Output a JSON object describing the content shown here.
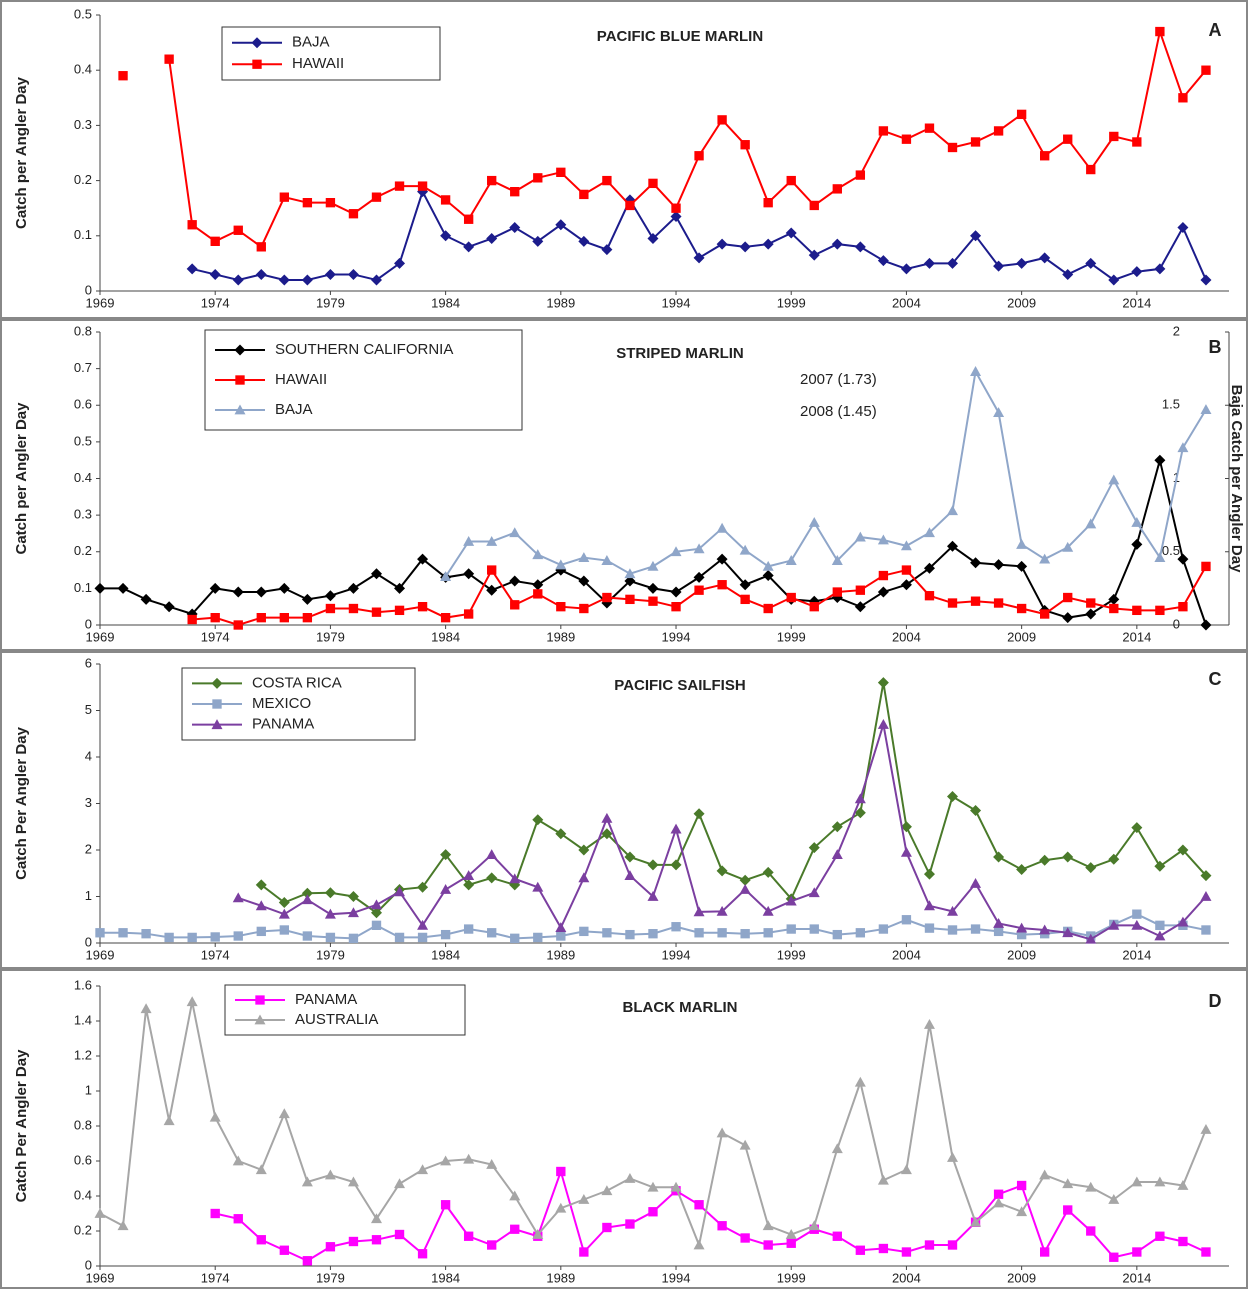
{
  "chart_data": [
    {
      "type": "line",
      "title": "PACIFIC BLUE MARLIN",
      "panel_label": "A",
      "ylabel": "Catch per Angler Day",
      "x": [
        1969,
        1970,
        1971,
        1972,
        1973,
        1974,
        1975,
        1976,
        1977,
        1978,
        1979,
        1980,
        1981,
        1982,
        1983,
        1984,
        1985,
        1986,
        1987,
        1988,
        1989,
        1990,
        1991,
        1992,
        1993,
        1994,
        1995,
        1996,
        1997,
        1998,
        1999,
        2000,
        2001,
        2002,
        2003,
        2004,
        2005,
        2006,
        2007,
        2008,
        2009,
        2010,
        2011,
        2012,
        2013,
        2014,
        2015,
        2016,
        2017
      ],
      "xlim": [
        1969,
        2018
      ],
      "xticks": [
        1969,
        1974,
        1979,
        1984,
        1989,
        1994,
        1999,
        2004,
        2009,
        2014
      ],
      "ylim": [
        0,
        0.5
      ],
      "yticks": [
        0,
        0.1,
        0.2,
        0.3,
        0.4,
        0.5
      ],
      "series": [
        {
          "name": "BAJA",
          "color": "#1c1c8c",
          "marker": "diamond",
          "values": [
            null,
            null,
            null,
            null,
            0.04,
            0.03,
            0.02,
            0.03,
            0.02,
            0.02,
            0.03,
            0.03,
            0.02,
            0.05,
            0.18,
            0.1,
            0.08,
            0.095,
            0.115,
            0.09,
            0.12,
            0.09,
            0.075,
            0.165,
            0.095,
            0.135,
            0.06,
            0.085,
            0.08,
            0.085,
            0.105,
            0.065,
            0.085,
            0.08,
            0.055,
            0.04,
            0.05,
            0.05,
            0.1,
            0.045,
            0.05,
            0.06,
            0.03,
            0.05,
            0.02,
            0.035,
            0.04,
            0.115,
            0.02
          ]
        },
        {
          "name": "HAWAII",
          "color": "#ff0000",
          "marker": "square",
          "values": [
            null,
            0.39,
            null,
            0.42,
            0.12,
            0.09,
            0.11,
            0.08,
            0.17,
            0.16,
            0.16,
            0.14,
            0.17,
            0.19,
            0.19,
            0.165,
            0.13,
            0.2,
            0.18,
            0.205,
            0.215,
            0.175,
            0.2,
            0.155,
            0.195,
            0.15,
            0.245,
            0.31,
            0.265,
            0.16,
            0.2,
            0.155,
            0.185,
            0.21,
            0.29,
            0.275,
            0.295,
            0.26,
            0.27,
            0.29,
            0.32,
            0.245,
            0.275,
            0.22,
            0.28,
            0.27,
            0.47,
            0.35,
            0.4
          ]
        }
      ]
    },
    {
      "type": "line",
      "title": "STRIPED MARLIN",
      "panel_label": "B",
      "ylabel": "Catch per Angler Day",
      "y2label": "Baja Catch per Angler Day",
      "x": [
        1969,
        1970,
        1971,
        1972,
        1973,
        1974,
        1975,
        1976,
        1977,
        1978,
        1979,
        1980,
        1981,
        1982,
        1983,
        1984,
        1985,
        1986,
        1987,
        1988,
        1989,
        1990,
        1991,
        1992,
        1993,
        1994,
        1995,
        1996,
        1997,
        1998,
        1999,
        2000,
        2001,
        2002,
        2003,
        2004,
        2005,
        2006,
        2007,
        2008,
        2009,
        2010,
        2011,
        2012,
        2013,
        2014,
        2015,
        2016,
        2017
      ],
      "xlim": [
        1969,
        2018
      ],
      "xticks": [
        1969,
        1974,
        1979,
        1984,
        1989,
        1994,
        1999,
        2004,
        2009,
        2014
      ],
      "ylim": [
        0,
        0.8
      ],
      "yticks": [
        0,
        0.1,
        0.2,
        0.3,
        0.4,
        0.5,
        0.6,
        0.7,
        0.8
      ],
      "y2lim": [
        0,
        2
      ],
      "y2ticks": [
        0,
        0.5,
        1,
        1.5,
        2
      ],
      "annotations": [
        "2007 (1.73)",
        "2008 (1.45)"
      ],
      "series": [
        {
          "name": "SOUTHERN CALIFORNIA",
          "color": "#000000",
          "marker": "diamond",
          "values": [
            0.1,
            0.1,
            0.07,
            0.05,
            0.03,
            0.1,
            0.09,
            0.09,
            0.1,
            0.07,
            0.08,
            0.1,
            0.14,
            0.1,
            0.18,
            0.13,
            0.14,
            0.095,
            0.12,
            0.11,
            0.15,
            0.12,
            0.06,
            0.12,
            0.1,
            0.09,
            0.13,
            0.18,
            0.11,
            0.135,
            0.07,
            0.065,
            0.075,
            0.05,
            0.09,
            0.11,
            0.155,
            0.215,
            0.17,
            0.165,
            0.16,
            0.04,
            0.02,
            0.03,
            0.07,
            0.22,
            0.45,
            0.18,
            0
          ]
        },
        {
          "name": "HAWAII",
          "color": "#ff0000",
          "marker": "square",
          "values": [
            null,
            null,
            null,
            null,
            0.015,
            0.02,
            0,
            0.02,
            0.02,
            0.02,
            0.045,
            0.045,
            0.035,
            0.04,
            0.05,
            0.02,
            0.03,
            0.15,
            0.055,
            0.085,
            0.05,
            0.045,
            0.075,
            0.07,
            0.065,
            0.05,
            0.095,
            0.11,
            0.07,
            0.045,
            0.075,
            0.05,
            0.09,
            0.095,
            0.135,
            0.15,
            0.08,
            0.06,
            0.065,
            0.06,
            0.045,
            0.03,
            0.075,
            0.06,
            0.045,
            0.04,
            0.04,
            0.05,
            0.16
          ]
        },
        {
          "name": "BAJA",
          "color": "#8fa6c9",
          "marker": "triangle",
          "axis": "y2",
          "values": [
            null,
            null,
            null,
            null,
            null,
            null,
            null,
            null,
            null,
            null,
            null,
            null,
            null,
            null,
            null,
            0.33,
            0.57,
            0.57,
            0.63,
            0.48,
            0.41,
            0.46,
            0.44,
            0.35,
            0.4,
            0.5,
            0.52,
            0.66,
            0.51,
            0.4,
            0.44,
            0.7,
            0.44,
            0.6,
            0.58,
            0.54,
            0.63,
            0.78,
            1.73,
            1.45,
            0.55,
            0.45,
            0.53,
            0.69,
            0.99,
            0.7,
            0.46,
            1.21,
            1.47
          ]
        }
      ]
    },
    {
      "type": "line",
      "title": "PACIFIC SAILFISH",
      "panel_label": "C",
      "ylabel": "Catch Per Angler Day",
      "x": [
        1969,
        1970,
        1971,
        1972,
        1973,
        1974,
        1975,
        1976,
        1977,
        1978,
        1979,
        1980,
        1981,
        1982,
        1983,
        1984,
        1985,
        1986,
        1987,
        1988,
        1989,
        1990,
        1991,
        1992,
        1993,
        1994,
        1995,
        1996,
        1997,
        1998,
        1999,
        2000,
        2001,
        2002,
        2003,
        2004,
        2005,
        2006,
        2007,
        2008,
        2009,
        2010,
        2011,
        2012,
        2013,
        2014,
        2015,
        2016,
        2017
      ],
      "xlim": [
        1969,
        2018
      ],
      "xticks": [
        1969,
        1974,
        1979,
        1984,
        1989,
        1994,
        1999,
        2004,
        2009,
        2014
      ],
      "ylim": [
        0,
        6
      ],
      "yticks": [
        0,
        1,
        2,
        3,
        4,
        5,
        6
      ],
      "series": [
        {
          "name": "COSTA RICA",
          "color": "#4a7a2a",
          "marker": "diamond",
          "values": [
            null,
            null,
            null,
            null,
            null,
            null,
            null,
            1.25,
            0.87,
            1.07,
            1.08,
            1.0,
            0.65,
            1.15,
            1.2,
            1.9,
            1.25,
            1.4,
            1.25,
            2.65,
            2.35,
            2.0,
            2.35,
            1.85,
            1.68,
            1.68,
            2.78,
            1.55,
            1.35,
            1.52,
            0.95,
            2.05,
            2.5,
            2.8,
            5.6,
            2.5,
            1.48,
            3.15,
            2.85,
            1.85,
            1.58,
            1.78,
            1.85,
            1.62,
            1.8,
            2.48,
            1.65,
            2.0,
            1.45
          ]
        },
        {
          "name": "MEXICO",
          "color": "#8fa6c9",
          "marker": "square",
          "values": [
            0.22,
            0.22,
            0.2,
            0.12,
            0.12,
            0.13,
            0.15,
            0.25,
            0.28,
            0.15,
            0.12,
            0.1,
            0.38,
            0.12,
            0.12,
            0.18,
            0.3,
            0.22,
            0.1,
            0.12,
            0.15,
            0.25,
            0.22,
            0.18,
            0.2,
            0.35,
            0.22,
            0.22,
            0.2,
            0.22,
            0.3,
            0.3,
            0.18,
            0.22,
            0.3,
            0.5,
            0.32,
            0.28,
            0.3,
            0.25,
            0.18,
            0.2,
            0.25,
            0.15,
            0.4,
            0.62,
            0.38,
            0.38,
            0.28
          ]
        },
        {
          "name": "PANAMA",
          "color": "#7b3fa0",
          "marker": "triangle",
          "values": [
            null,
            null,
            null,
            null,
            null,
            null,
            0.97,
            0.8,
            0.62,
            0.93,
            0.62,
            0.65,
            0.82,
            1.1,
            0.38,
            1.15,
            1.45,
            1.9,
            1.38,
            1.2,
            0.33,
            1.4,
            2.68,
            1.45,
            1.0,
            2.45,
            0.67,
            0.68,
            1.15,
            0.68,
            0.9,
            1.08,
            1.9,
            3.1,
            4.7,
            1.95,
            0.8,
            0.68,
            1.28,
            0.42,
            0.32,
            0.28,
            0.22,
            0.08,
            0.38,
            0.38,
            0.15,
            0.45,
            1.0
          ]
        }
      ]
    },
    {
      "type": "line",
      "title": "BLACK MARLIN",
      "panel_label": "D",
      "ylabel": "Catch Per Angler Day",
      "x": [
        1969,
        1970,
        1971,
        1972,
        1973,
        1974,
        1975,
        1976,
        1977,
        1978,
        1979,
        1980,
        1981,
        1982,
        1983,
        1984,
        1985,
        1986,
        1987,
        1988,
        1989,
        1990,
        1991,
        1992,
        1993,
        1994,
        1995,
        1996,
        1997,
        1998,
        1999,
        2000,
        2001,
        2002,
        2003,
        2004,
        2005,
        2006,
        2007,
        2008,
        2009,
        2010,
        2011,
        2012,
        2013,
        2014,
        2015,
        2016,
        2017
      ],
      "xlim": [
        1969,
        2018
      ],
      "xticks": [
        1969,
        1974,
        1979,
        1984,
        1989,
        1994,
        1999,
        2004,
        2009,
        2014
      ],
      "ylim": [
        0,
        1.6
      ],
      "yticks": [
        0,
        0.2,
        0.4,
        0.6,
        0.8,
        1,
        1.2,
        1.4,
        1.6
      ],
      "series": [
        {
          "name": "PANAMA",
          "color": "#ff00ff",
          "marker": "square",
          "values": [
            null,
            null,
            null,
            null,
            null,
            0.3,
            0.27,
            0.15,
            0.09,
            0.03,
            0.11,
            0.14,
            0.15,
            0.18,
            0.07,
            0.35,
            0.17,
            0.12,
            0.21,
            0.17,
            0.54,
            0.08,
            0.22,
            0.24,
            0.31,
            0.43,
            0.35,
            0.23,
            0.16,
            0.12,
            0.13,
            0.21,
            0.17,
            0.09,
            0.1,
            0.08,
            0.12,
            0.12,
            0.25,
            0.41,
            0.46,
            0.08,
            0.32,
            0.2,
            0.05,
            0.08,
            0.17,
            0.14,
            0.08
          ]
        },
        {
          "name": "AUSTRALIA",
          "color": "#a6a6a6",
          "marker": "triangle",
          "values": [
            0.3,
            0.23,
            1.47,
            0.83,
            1.51,
            0.85,
            0.6,
            0.55,
            0.87,
            0.48,
            0.52,
            0.48,
            0.27,
            0.47,
            0.55,
            0.6,
            0.61,
            0.58,
            0.4,
            0.18,
            0.33,
            0.38,
            0.43,
            0.5,
            0.45,
            0.45,
            0.12,
            0.76,
            0.69,
            0.23,
            0.18,
            0.23,
            0.67,
            1.05,
            0.49,
            0.55,
            1.38,
            0.62,
            0.25,
            0.36,
            0.31,
            0.52,
            0.47,
            0.45,
            0.38,
            0.48,
            0.48,
            0.46,
            0.78
          ]
        }
      ]
    }
  ]
}
